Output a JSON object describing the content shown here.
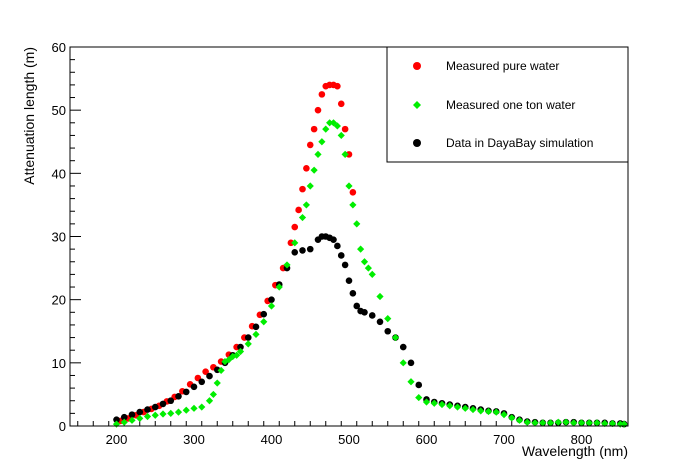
{
  "chart_data": {
    "type": "scatter",
    "title": "",
    "xlabel": "Wavelength (nm)",
    "ylabel": "Attenuation length (m)",
    "xlim": [
      140,
      860
    ],
    "ylim": [
      0,
      60
    ],
    "x_major_ticks": [
      200,
      300,
      400,
      500,
      600,
      700,
      800
    ],
    "x_tick_labels": [
      "200",
      "300",
      "400",
      "500",
      "600",
      "700",
      "800"
    ],
    "y_major_ticks": [
      0,
      10,
      20,
      30,
      40,
      50,
      60
    ],
    "y_tick_labels": [
      "0",
      "10",
      "20",
      "30",
      "40",
      "50",
      "60"
    ],
    "grid": false,
    "legend_position": "top-right",
    "series": [
      {
        "name": "Measured pure water",
        "color": "#ff0000",
        "marker": "circle",
        "x": [
          205,
          215,
          225,
          235,
          245,
          255,
          265,
          275,
          285,
          295,
          305,
          315,
          325,
          335,
          345,
          355,
          365,
          375,
          385,
          395,
          405,
          415,
          425,
          430,
          435,
          440,
          445,
          450,
          455,
          460,
          465,
          470,
          475,
          480,
          485,
          490,
          495,
          500,
          505
        ],
        "y": [
          0.8,
          1.2,
          1.7,
          2.2,
          2.7,
          3.2,
          3.9,
          4.6,
          5.5,
          6.6,
          7.6,
          8.6,
          9.3,
          10.2,
          11.3,
          12.5,
          14,
          15.8,
          17.6,
          19.8,
          22.3,
          25,
          29,
          31.5,
          34.2,
          37.5,
          40.8,
          44.5,
          47,
          50,
          52.5,
          53.8,
          54,
          54,
          53.8,
          51,
          47,
          43,
          37
        ]
      },
      {
        "name": "Measured one ton water",
        "color": "#00ee00",
        "marker": "diamond",
        "x": [
          200,
          210,
          220,
          230,
          240,
          250,
          260,
          270,
          280,
          290,
          300,
          310,
          320,
          325,
          330,
          335,
          340,
          345,
          350,
          355,
          360,
          370,
          380,
          390,
          400,
          410,
          420,
          430,
          440,
          445,
          450,
          455,
          460,
          465,
          470,
          475,
          480,
          485,
          490,
          495,
          500,
          505,
          510,
          515,
          520,
          525,
          530,
          540,
          550,
          560,
          570,
          580,
          590,
          600,
          610,
          620,
          630,
          640,
          650,
          660,
          670,
          680,
          690,
          700,
          710,
          720,
          730,
          740,
          750,
          760,
          770,
          780,
          790,
          800,
          810,
          820,
          830,
          840,
          850,
          855
        ],
        "y": [
          0.3,
          0.6,
          0.9,
          1.2,
          1.5,
          1.7,
          1.9,
          2,
          2.2,
          2.5,
          2.8,
          3,
          4,
          5,
          6.8,
          8.8,
          10.2,
          10.5,
          11,
          11.2,
          11.8,
          13,
          14.5,
          16.5,
          19,
          22,
          25.5,
          29,
          33,
          35,
          38,
          40.5,
          43,
          45,
          47,
          48,
          48,
          47.5,
          46,
          43,
          38,
          35,
          32,
          28,
          26,
          25,
          24,
          20.5,
          17,
          14,
          10,
          7,
          4.5,
          3.8,
          3.6,
          3.4,
          3.2,
          3,
          2.8,
          2.6,
          2.4,
          2.3,
          2.2,
          1.8,
          1.3,
          0.9,
          0.6,
          0.5,
          0.5,
          0.5,
          0.6,
          0.6,
          0.5,
          0.5,
          0.5,
          0.5,
          0.4,
          0.4,
          0.3,
          0.3
        ]
      },
      {
        "name": "Data in DayaBay simulation",
        "color": "#000000",
        "marker": "circle",
        "x": [
          200,
          210,
          220,
          230,
          240,
          250,
          260,
          270,
          280,
          290,
          300,
          310,
          320,
          330,
          340,
          350,
          360,
          370,
          380,
          390,
          400,
          410,
          420,
          430,
          440,
          450,
          460,
          465,
          470,
          475,
          480,
          485,
          490,
          495,
          500,
          505,
          510,
          515,
          520,
          530,
          540,
          550,
          560,
          570,
          580,
          590,
          600,
          610,
          620,
          630,
          640,
          650,
          660,
          670,
          680,
          690,
          700,
          710,
          720,
          730,
          740,
          750,
          760,
          770,
          780,
          790,
          800,
          810,
          820,
          830,
          840,
          850,
          855
        ],
        "y": [
          1,
          1.4,
          1.8,
          2.2,
          2.6,
          3,
          3.5,
          4,
          4.7,
          5.4,
          6.2,
          7,
          7.9,
          8.9,
          10,
          11.2,
          12.5,
          14,
          15.7,
          17.7,
          20,
          22.4,
          25,
          27.5,
          27.8,
          28,
          29.5,
          30,
          30,
          29.8,
          29.5,
          28.5,
          27,
          25.5,
          23,
          21,
          19,
          18.2,
          18,
          17.5,
          16.5,
          15,
          14,
          12.5,
          10,
          6.5,
          4.2,
          3.8,
          3.6,
          3.4,
          3.2,
          3,
          2.8,
          2.6,
          2.4,
          2.3,
          2,
          1.4,
          1,
          0.7,
          0.6,
          0.5,
          0.5,
          0.5,
          0.6,
          0.6,
          0.5,
          0.5,
          0.5,
          0.5,
          0.4,
          0.4,
          0.3
        ]
      }
    ]
  }
}
